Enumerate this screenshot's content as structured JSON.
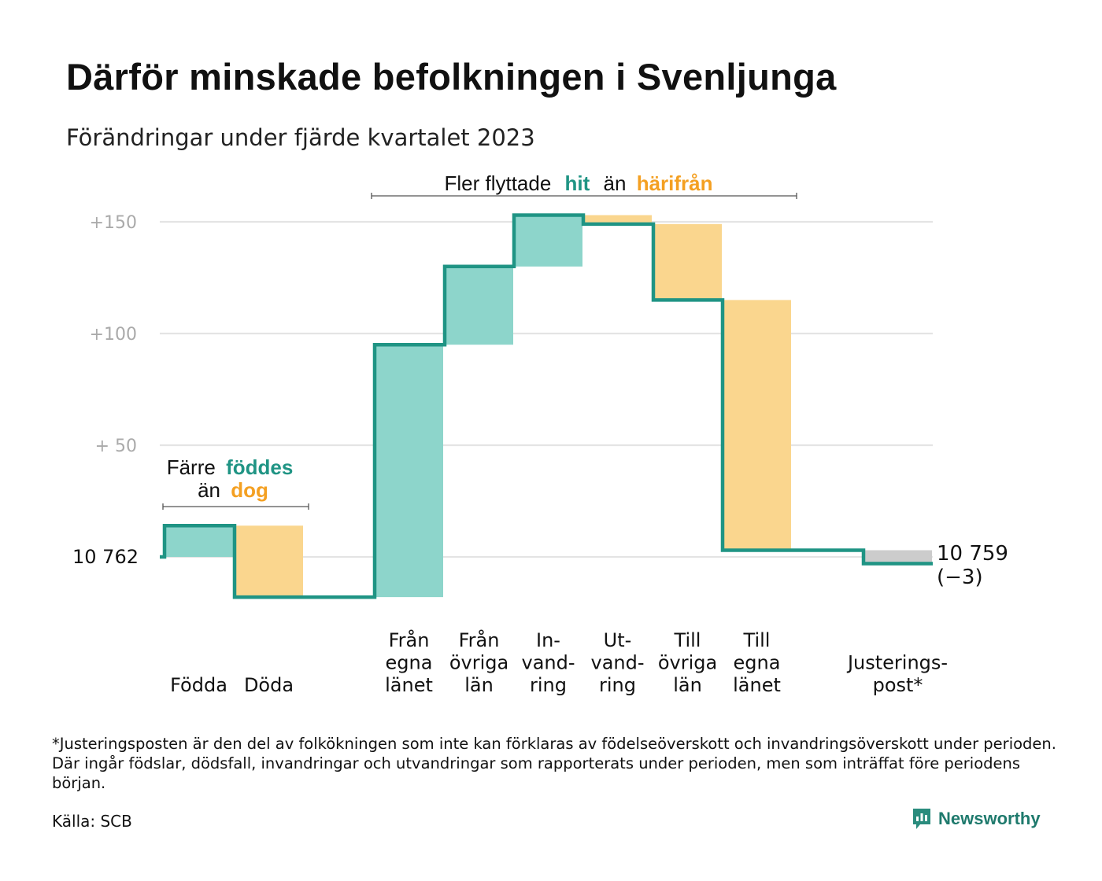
{
  "title": "Därför minskade befolkningen i Svenljunga",
  "subtitle": "Förändringar under fjärde kvartalet 2023",
  "annotations": {
    "births": {
      "prefix": "Färre",
      "hit": "föddes",
      "middle": "än",
      "out": "dog"
    },
    "migration": {
      "prefix": "Fler flyttade",
      "hit": "hit",
      "middle": "än",
      "out": "härifrån"
    }
  },
  "end_label": {
    "value": "10 759",
    "change": "(−3)"
  },
  "footnote": "*Justeringsposten är den del av folkökningen som inte kan förklaras av födelseöverskott och invandringsöverskott under perioden. Där ingår födslar, dödsfall, invandringar och utvandringar som rapporterats under perioden, men som inträffat före periodens början.",
  "source": "Källa: SCB",
  "brand": {
    "name": "Newsworthy",
    "icon": "newsworthy-logo-icon"
  },
  "colors": {
    "increase": "#8dd5cb",
    "decrease": "#fad68e",
    "adjustment": "#cccccc",
    "line": "#1f9484",
    "hit_text": "#1f9484",
    "out_text": "#f4a022",
    "grid": "#e4e4e4",
    "tick_text": "#aaaaaa"
  },
  "chart_data": {
    "type": "waterfall",
    "start": 10762,
    "end": 10759,
    "change": -3,
    "y_ticks": [
      {
        "value": 150,
        "label": "+150"
      },
      {
        "value": 100,
        "label": "+100"
      },
      {
        "value": 50,
        "label": "+  50"
      },
      {
        "value": 0,
        "label": "10  762"
      }
    ],
    "ylim": [
      -18,
      153
    ],
    "steps": [
      {
        "label": [
          "Födda"
        ],
        "value": 14,
        "kind": "increase"
      },
      {
        "label": [
          "Döda"
        ],
        "value": -32,
        "kind": "decrease"
      },
      {
        "label": [
          "Från",
          "egna",
          "länet"
        ],
        "value": 113,
        "kind": "increase"
      },
      {
        "label": [
          "Från",
          "övriga",
          "län"
        ],
        "value": 35,
        "kind": "increase"
      },
      {
        "label": [
          "In-",
          "vand-",
          "ring"
        ],
        "value": 23,
        "kind": "increase"
      },
      {
        "label": [
          "Ut-",
          "vand-",
          "ring"
        ],
        "value": -4,
        "kind": "decrease"
      },
      {
        "label": [
          "Till",
          "övriga",
          "län"
        ],
        "value": -34,
        "kind": "decrease"
      },
      {
        "label": [
          "Till",
          "egna",
          "länet"
        ],
        "value": -112,
        "kind": "decrease"
      },
      {
        "label": [
          "Justerings-",
          "post*"
        ],
        "value": -6,
        "kind": "adjustment"
      }
    ]
  }
}
